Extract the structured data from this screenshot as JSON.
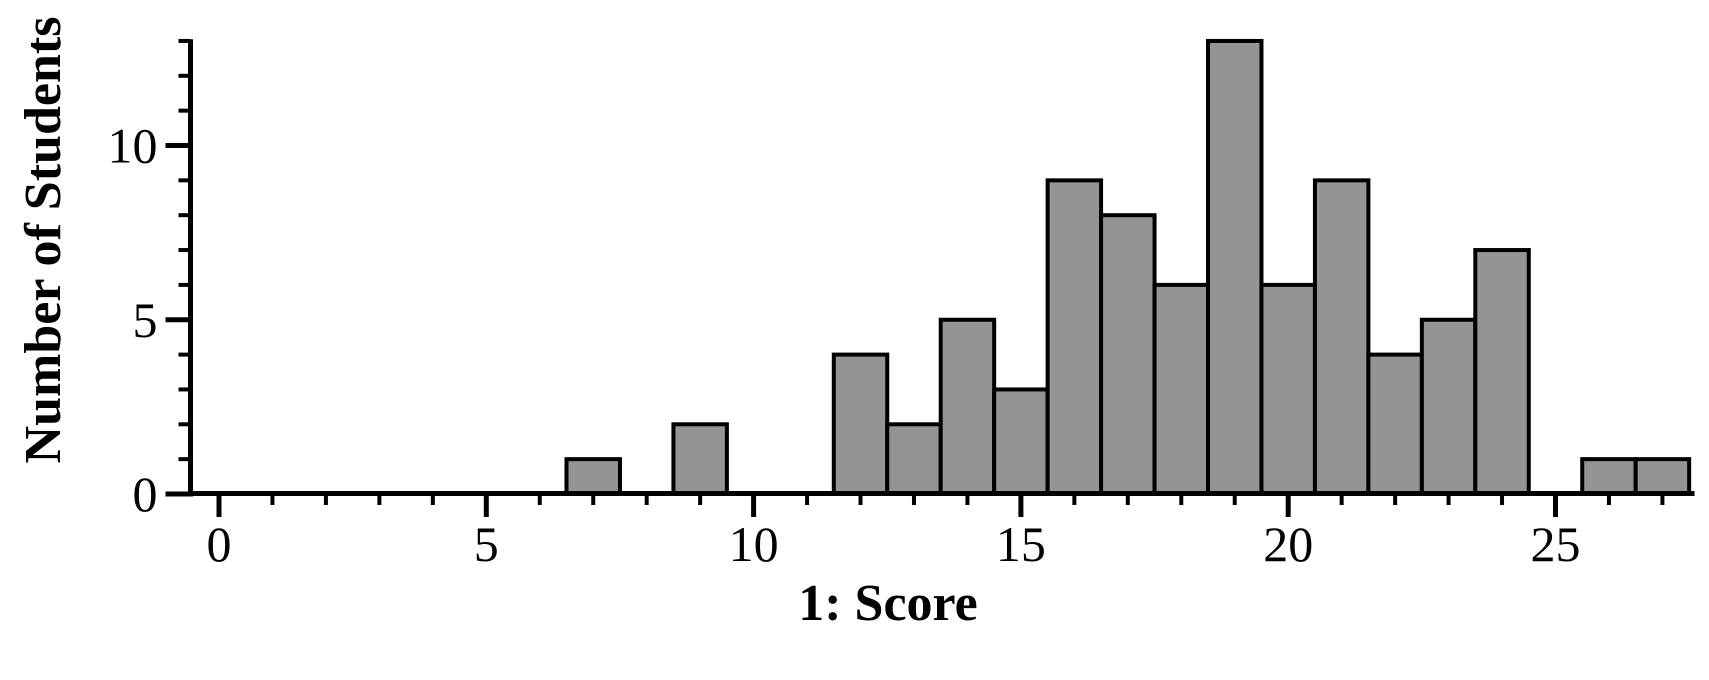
{
  "chart_data": {
    "type": "bar",
    "subtype": "histogram",
    "title": "",
    "xlabel": "1: Score",
    "ylabel": "Number of Students",
    "bin_width": 1,
    "bin_centers": [
      7,
      8,
      9,
      10,
      11,
      12,
      13,
      14,
      15,
      16,
      17,
      18,
      19,
      20,
      21,
      22,
      23,
      24,
      25,
      26,
      27
    ],
    "values": [
      1,
      0,
      2,
      0,
      0,
      4,
      2,
      5,
      3,
      9,
      8,
      6,
      13,
      6,
      9,
      4,
      5,
      7,
      0,
      1,
      1
    ],
    "xlim": [
      -0.55,
      27.6
    ],
    "ylim": [
      0,
      13.05
    ],
    "x_major_ticks": [
      0,
      5,
      10,
      15,
      20,
      25
    ],
    "x_tick_labels": [
      "0",
      "5",
      "10",
      "15",
      "20",
      "25"
    ],
    "y_major_ticks": [
      0,
      5,
      10
    ],
    "y_tick_labels": [
      "0",
      "5",
      "10"
    ],
    "minor_tick_step": 1,
    "grid": "off",
    "legend": "none",
    "bar_fill": "#949494",
    "bar_stroke": "#000000",
    "axis_color": "#000000",
    "background": "#ffffff"
  }
}
